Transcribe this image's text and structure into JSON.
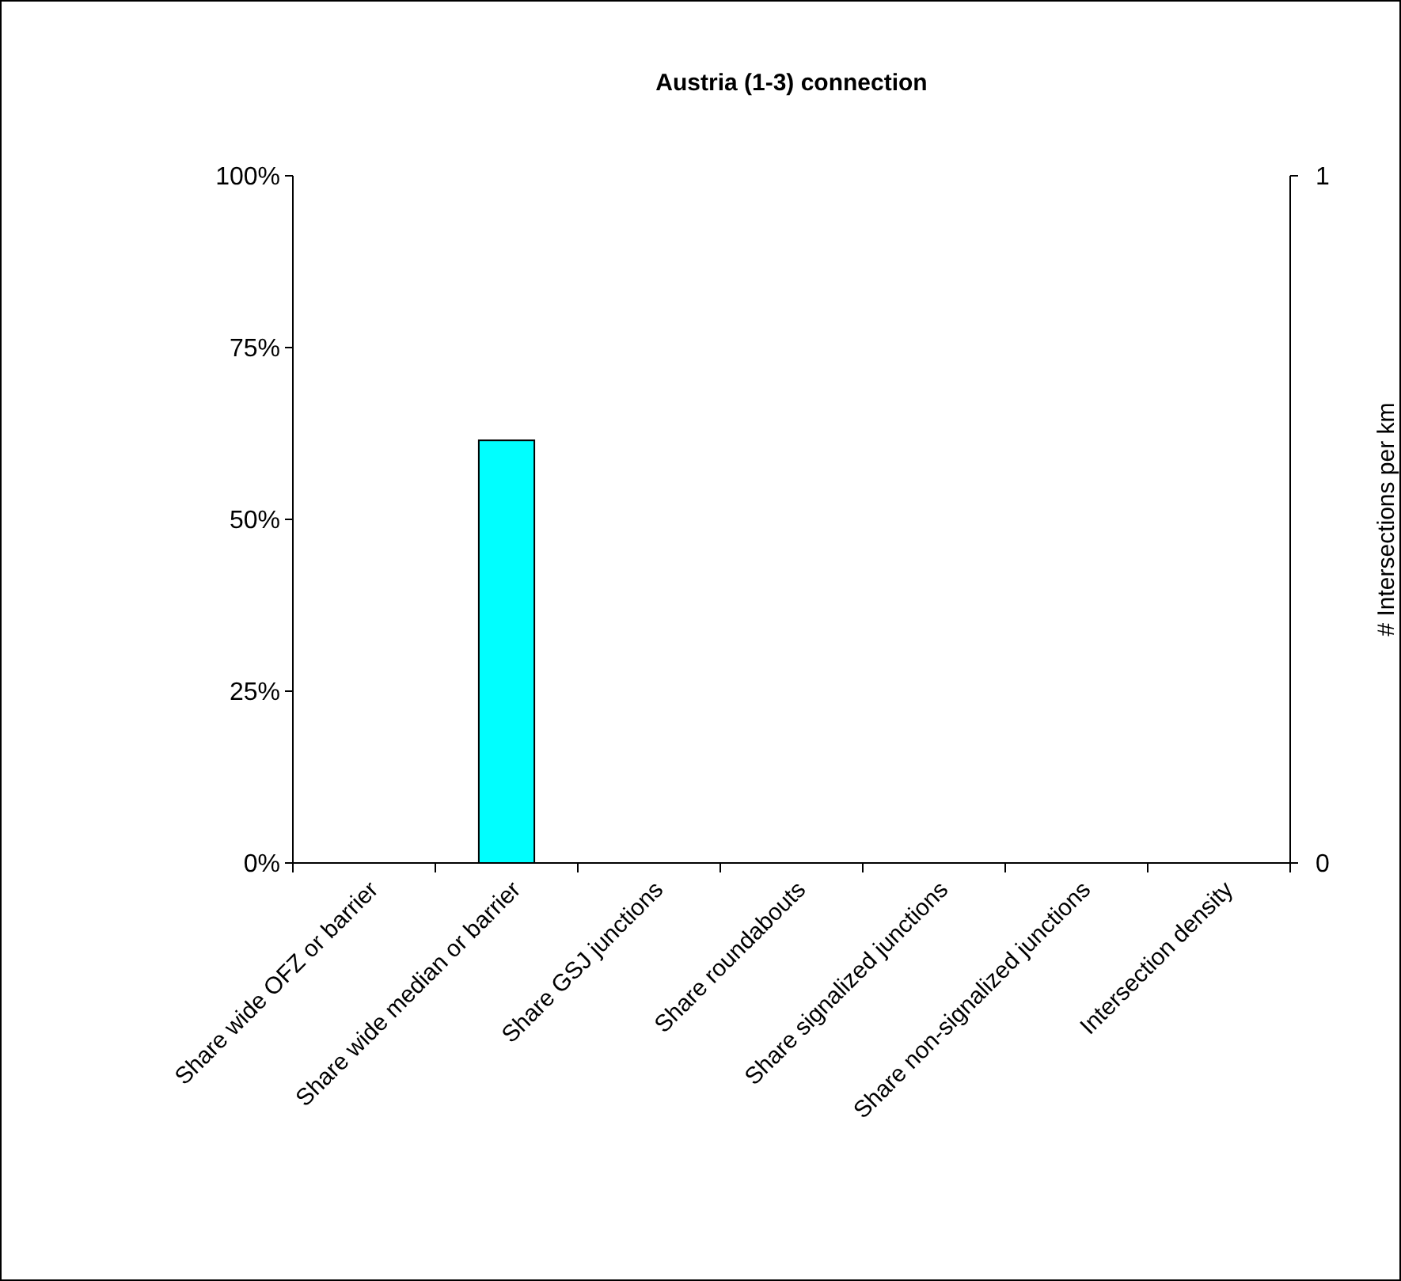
{
  "chart_data": {
    "type": "bar",
    "title": "Austria (1-3) connection",
    "y2label": "# Intersections per km",
    "categories": [
      "Share wide OFZ or barrier",
      "Share wide median or barrier",
      "Share GSJ junctions",
      "Share roundabouts",
      "Share signalized junctions",
      "Share non-signalized junctions",
      "Intersection density"
    ],
    "series": [
      {
        "color": "#00ffff",
        "values": [
          0,
          61.5,
          0,
          0,
          0,
          0,
          0
        ]
      }
    ],
    "ylim": [
      0,
      100
    ],
    "yticks": [
      {
        "value": 0,
        "label": "0%"
      },
      {
        "value": 25,
        "label": "25%"
      },
      {
        "value": 50,
        "label": "50%"
      },
      {
        "value": 75,
        "label": "75%"
      },
      {
        "value": 100,
        "label": "100%"
      }
    ],
    "y2lim": [
      0,
      1
    ],
    "y2ticks": [
      0,
      1
    ],
    "grid": false
  }
}
